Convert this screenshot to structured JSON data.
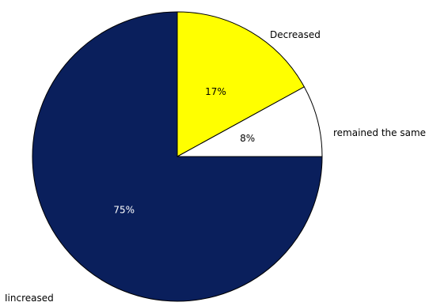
{
  "chart_data": {
    "type": "pie",
    "title": "",
    "start_angle_deg": 0,
    "direction": "clockwise",
    "slices": [
      {
        "label": "Decreased",
        "value": 17,
        "value_label": "17%",
        "color": "#ffff00",
        "value_label_color": "#000000"
      },
      {
        "label": "remained the same",
        "value": 8,
        "value_label": "8%",
        "color": "#ffffff",
        "value_label_color": "#000000"
      },
      {
        "label": "Iincreased",
        "value": 75,
        "value_label": "75%",
        "color": "#0a1f5c",
        "value_label_color": "#ffffff"
      }
    ],
    "slice_border_color": "#000000"
  }
}
